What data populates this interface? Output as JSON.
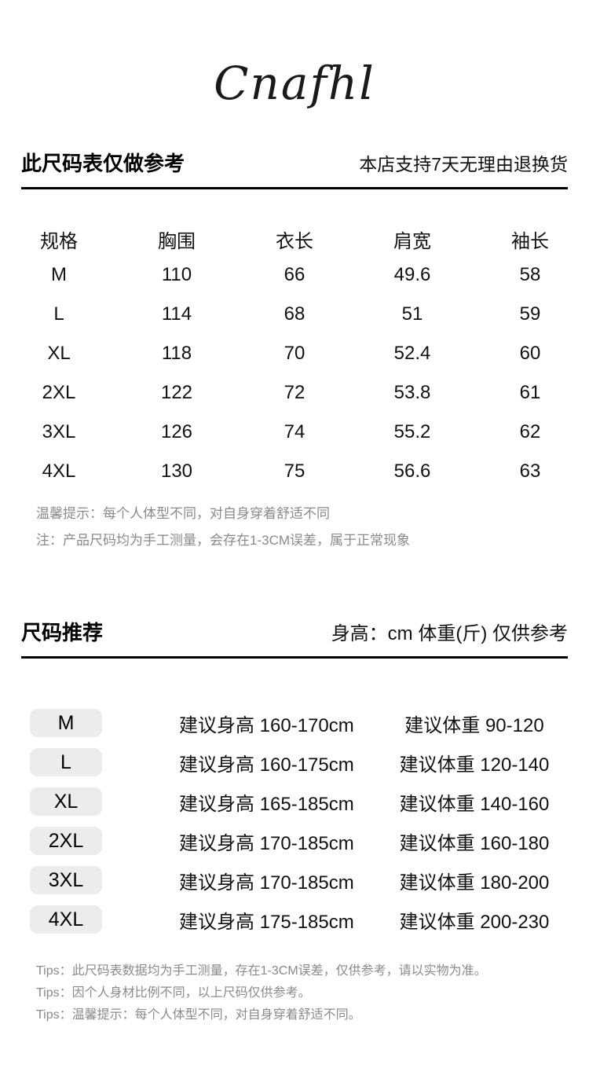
{
  "brand": {
    "logo_text": "Cnafhl"
  },
  "size_table": {
    "title": "此尺码表仅做参考",
    "note": "本店支持7天无理由退换货",
    "columns": [
      "规格",
      "胸围",
      "衣长",
      "肩宽",
      "袖长"
    ],
    "rows": [
      [
        "M",
        "110",
        "66",
        "49.6",
        "58"
      ],
      [
        "L",
        "114",
        "68",
        "51",
        "59"
      ],
      [
        "XL",
        "118",
        "70",
        "52.4",
        "60"
      ],
      [
        "2XL",
        "122",
        "72",
        "53.8",
        "61"
      ],
      [
        "3XL",
        "126",
        "74",
        "55.2",
        "62"
      ],
      [
        "4XL",
        "130",
        "75",
        "56.6",
        "63"
      ]
    ],
    "tips": [
      "温馨提示：每个人体型不同，对自身穿着舒适不同",
      "注：产品尺码均为手工测量，会存在1-3CM误差，属于正常现象"
    ]
  },
  "recommend": {
    "title": "尺码推荐",
    "note": "身高：cm 体重(斤) 仅供参考",
    "rows": [
      {
        "size": "M",
        "height": "建议身高 160-170cm",
        "weight": "建议体重 90-120"
      },
      {
        "size": "L",
        "height": "建议身高 160-175cm",
        "weight": "建议体重 120-140"
      },
      {
        "size": "XL",
        "height": "建议身高 165-185cm",
        "weight": "建议体重 140-160"
      },
      {
        "size": "2XL",
        "height": "建议身高 170-185cm",
        "weight": "建议体重 160-180"
      },
      {
        "size": "3XL",
        "height": "建议身高 170-185cm",
        "weight": "建议体重 180-200"
      },
      {
        "size": "4XL",
        "height": "建议身高 175-185cm",
        "weight": "建议体重 200-230"
      }
    ],
    "tips": [
      "Tips：此尺码表数据均为手工测量，存在1-3CM误差，仅供参考，请以实物为准。",
      "Tips：因个人身材比例不同，以上尺码仅供参考。",
      "Tips：温馨提示：每个人体型不同，对自身穿着舒适不同。"
    ]
  },
  "colors": {
    "text": "#111111",
    "tip_gray": "#8a8a8a",
    "badge_bg": "#ececec",
    "divider": "#000000"
  }
}
